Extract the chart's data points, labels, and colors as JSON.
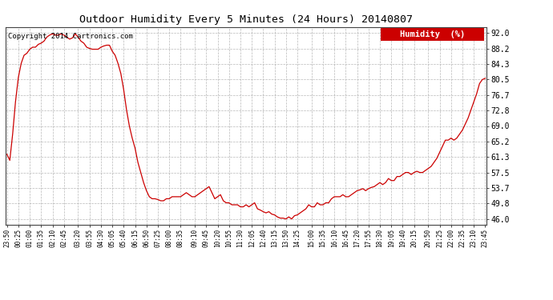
{
  "title": "Outdoor Humidity Every 5 Minutes (24 Hours) 20140807",
  "copyright": "Copyright 2014 Cartronics.com",
  "legend_label": "Humidity  (%)",
  "line_color": "#cc0000",
  "background_color": "#ffffff",
  "grid_color": "#b0b0b0",
  "yticks": [
    46.0,
    49.8,
    53.7,
    57.5,
    61.3,
    65.2,
    69.0,
    72.8,
    76.7,
    80.5,
    84.3,
    88.2,
    92.0
  ],
  "ylim": [
    44.5,
    93.5
  ],
  "x_labels": [
    "23:50",
    "00:25",
    "01:00",
    "01:35",
    "02:10",
    "02:45",
    "03:20",
    "03:55",
    "04:30",
    "05:05",
    "05:40",
    "06:15",
    "06:50",
    "07:25",
    "08:00",
    "08:35",
    "09:10",
    "09:45",
    "10:20",
    "10:55",
    "11:30",
    "12:05",
    "12:40",
    "13:15",
    "13:50",
    "14:25",
    "15:00",
    "15:35",
    "16:10",
    "16:45",
    "17:20",
    "17:55",
    "18:30",
    "19:05",
    "19:40",
    "20:15",
    "20:50",
    "21:25",
    "22:00",
    "22:35",
    "23:10",
    "23:45"
  ],
  "humidity_values": [
    62.0,
    60.5,
    67.0,
    75.0,
    81.0,
    84.5,
    86.5,
    87.0,
    88.0,
    88.5,
    88.5,
    89.2,
    89.5,
    90.0,
    91.0,
    91.5,
    91.8,
    91.5,
    91.5,
    91.8,
    91.5,
    91.0,
    90.5,
    90.8,
    91.8,
    91.0,
    90.0,
    89.5,
    88.5,
    88.2,
    88.0,
    88.0,
    88.0,
    88.5,
    88.8,
    89.0,
    89.0,
    87.5,
    86.5,
    84.5,
    82.0,
    78.0,
    73.0,
    69.0,
    66.0,
    63.5,
    60.0,
    57.5,
    55.0,
    53.0,
    51.5,
    51.0,
    51.0,
    50.8,
    50.5,
    50.5,
    51.0,
    51.0,
    51.5,
    51.5,
    51.5,
    51.5,
    52.0,
    52.5,
    52.0,
    51.5,
    51.5,
    52.0,
    52.5,
    53.0,
    53.5,
    54.0,
    52.5,
    51.0,
    51.5,
    52.0,
    50.5,
    50.0,
    50.0,
    49.5,
    49.5,
    49.5,
    49.0,
    49.0,
    49.5,
    49.0,
    49.5,
    50.0,
    48.5,
    48.2,
    47.8,
    47.5,
    47.8,
    47.2,
    47.0,
    46.5,
    46.2,
    46.2,
    46.0,
    46.5,
    46.0,
    46.8,
    47.0,
    47.5,
    48.0,
    48.5,
    49.5,
    49.0,
    49.0,
    50.0,
    49.5,
    49.5,
    50.0,
    50.0,
    51.0,
    51.5,
    51.5,
    51.5,
    52.0,
    51.5,
    51.5,
    52.0,
    52.5,
    53.0,
    53.2,
    53.5,
    53.0,
    53.5,
    53.8,
    54.0,
    54.5,
    55.0,
    54.5,
    55.0,
    56.0,
    55.5,
    55.5,
    56.5,
    56.5,
    57.0,
    57.5,
    57.5,
    57.0,
    57.5,
    57.8,
    57.5,
    57.5,
    58.0,
    58.5,
    59.0,
    60.0,
    61.0,
    62.5,
    64.0,
    65.5,
    65.5,
    66.0,
    65.5,
    66.0,
    67.0,
    68.0,
    69.5,
    71.0,
    73.0,
    75.0,
    77.0,
    79.5,
    80.5,
    80.8
  ]
}
